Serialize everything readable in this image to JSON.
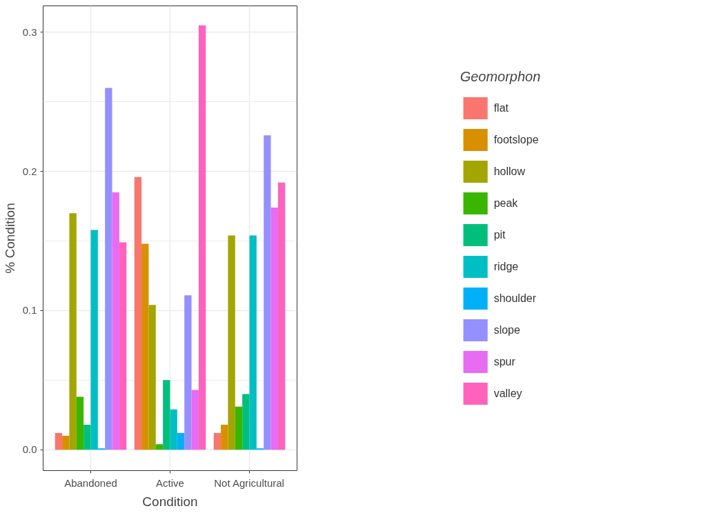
{
  "chart_data": {
    "type": "bar",
    "xlabel": "Condition",
    "ylabel": "% Condition",
    "legend_title": "Geomorphon",
    "categories": [
      "Abandoned",
      "Active",
      "Not Agricultural"
    ],
    "series": [
      {
        "name": "flat",
        "color": "#f8766d",
        "values": [
          0.012,
          0.196,
          0.012
        ]
      },
      {
        "name": "footslope",
        "color": "#d89000",
        "values": [
          0.01,
          0.148,
          0.018
        ]
      },
      {
        "name": "hollow",
        "color": "#a3a500",
        "values": [
          0.17,
          0.104,
          0.154
        ]
      },
      {
        "name": "peak",
        "color": "#39b600",
        "values": [
          0.038,
          0.004,
          0.031
        ]
      },
      {
        "name": "pit",
        "color": "#00bf7d",
        "values": [
          0.018,
          0.05,
          0.04
        ]
      },
      {
        "name": "ridge",
        "color": "#00bfc4",
        "values": [
          0.158,
          0.029,
          0.154
        ]
      },
      {
        "name": "shoulder",
        "color": "#00b0f6",
        "values": [
          0.001,
          0.012,
          0.001
        ]
      },
      {
        "name": "slope",
        "color": "#9590ff",
        "values": [
          0.26,
          0.111,
          0.226
        ]
      },
      {
        "name": "spur",
        "color": "#e76bf3",
        "values": [
          0.185,
          0.043,
          0.174
        ]
      },
      {
        "name": "valley",
        "color": "#ff62bc",
        "values": [
          0.149,
          0.305,
          0.192
        ]
      }
    ],
    "ylim": [
      -0.015,
      0.319
    ],
    "yticks": [
      {
        "value": 0,
        "label": "0.0"
      },
      0.1,
      0.2,
      0.3
    ],
    "grid": true,
    "legend": "right"
  }
}
